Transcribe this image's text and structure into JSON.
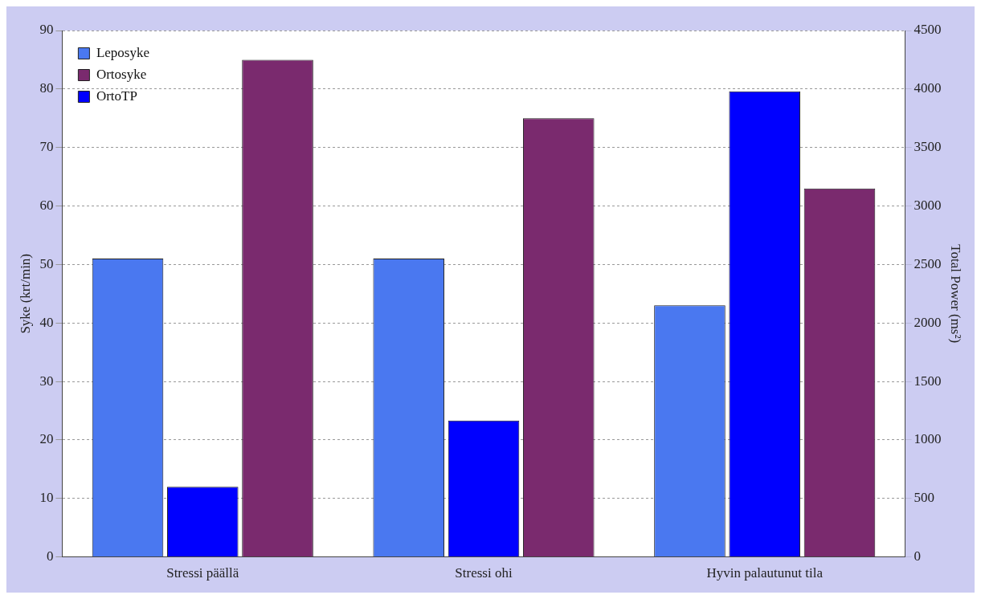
{
  "chart_data": {
    "type": "bar",
    "categories": [
      "Stressi päällä",
      "Stressi ohi",
      "Hyvin palautunut tila"
    ],
    "series": [
      {
        "name": "Leposyke",
        "color": "#4a78f0",
        "values": [
          51,
          51,
          43
        ]
      },
      {
        "name": "OrtoTP",
        "color": "#0000ff",
        "values": [
          600,
          1165,
          3980
        ],
        "axis": "y2"
      },
      {
        "name": "Ortosyke",
        "color": "#7a2a6e",
        "values": [
          85,
          75,
          63
        ]
      }
    ],
    "ylabel": "Syke (krt/min)",
    "y2label": "Total Power (ms²)",
    "ylim": [
      0,
      90
    ],
    "yticks": [
      0,
      10,
      20,
      30,
      40,
      50,
      60,
      70,
      80,
      90
    ],
    "y2lim": [
      0,
      4500
    ],
    "y2ticks": [
      0,
      500,
      1000,
      1500,
      2000,
      2500,
      3000,
      3500,
      4000,
      4500
    ],
    "grid": "y",
    "legend": "top left"
  }
}
